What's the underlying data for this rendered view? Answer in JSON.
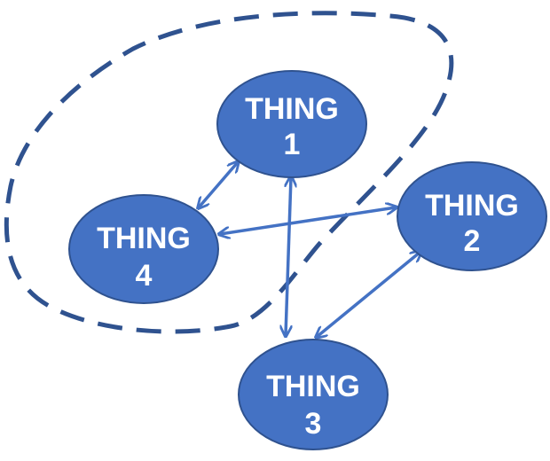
{
  "colors": {
    "node_fill": "#4472C4",
    "node_stroke": "#2F528F",
    "edge": "#4472C4",
    "group_boundary": "#2F528F",
    "label_text": "#FFFFFF"
  },
  "nodes": [
    {
      "id": "thing1",
      "line1": "THING",
      "line2": "1"
    },
    {
      "id": "thing2",
      "line1": "THING",
      "line2": "2"
    },
    {
      "id": "thing3",
      "line1": "THING",
      "line2": "3"
    },
    {
      "id": "thing4",
      "line1": "THING",
      "line2": "4"
    }
  ],
  "edges": [
    {
      "from": "thing1",
      "to": "thing4",
      "type": "bidirectional"
    },
    {
      "from": "thing1",
      "to": "thing3",
      "type": "bidirectional"
    },
    {
      "from": "thing4",
      "to": "thing2",
      "type": "bidirectional"
    },
    {
      "from": "thing2",
      "to": "thing3",
      "type": "bidirectional"
    }
  ],
  "groups": [
    {
      "members": [
        "thing1",
        "thing4"
      ],
      "style": "dashed"
    }
  ]
}
